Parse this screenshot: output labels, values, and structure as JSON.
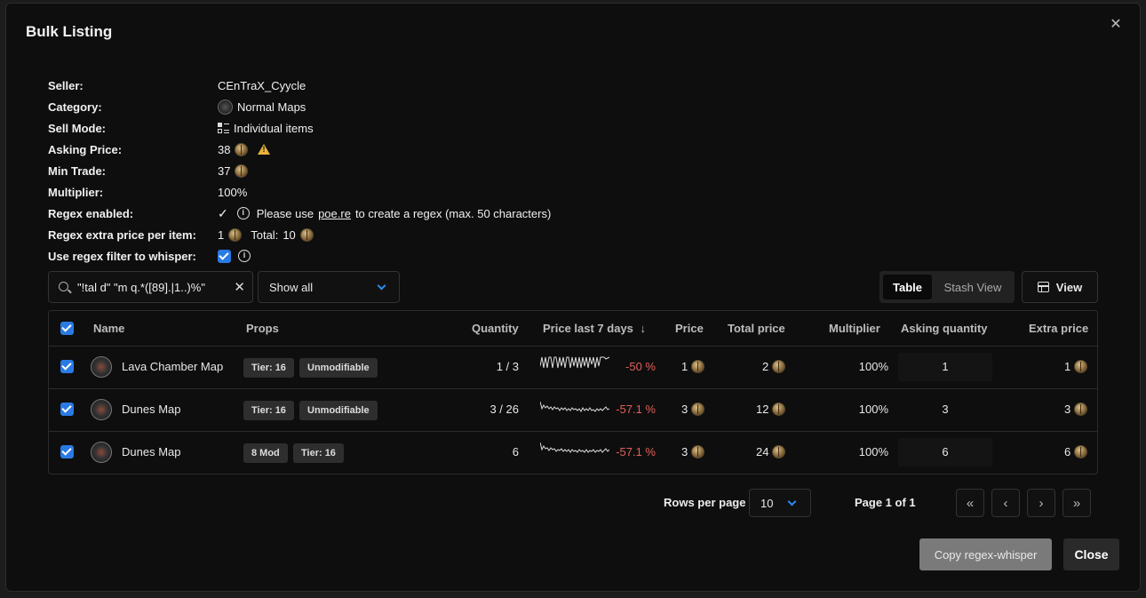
{
  "dialog": {
    "title": "Bulk Listing",
    "close_icon": "close-icon"
  },
  "info": {
    "seller_label": "Seller:",
    "seller_value": "CEnTraX_Cyycle",
    "category_label": "Category:",
    "category_value": "Normal Maps",
    "sell_mode_label": "Sell Mode:",
    "sell_mode_value": "Individual items",
    "asking_price_label": "Asking Price:",
    "asking_price_value": "38",
    "min_trade_label": "Min Trade:",
    "min_trade_value": "37",
    "multiplier_label": "Multiplier:",
    "multiplier_value": "100%",
    "regex_enabled_label": "Regex enabled:",
    "regex_hint_prefix": "Please use",
    "regex_hint_link": "poe.re",
    "regex_hint_suffix": "to create a regex (max. 50 characters)",
    "regex_extra_label": "Regex extra price per item:",
    "regex_extra_value": "1",
    "regex_total_label": "Total:",
    "regex_total_value": "10",
    "use_regex_label": "Use regex filter to whisper:"
  },
  "filters": {
    "search_value": "\"!tal d\" \"m q.*([89].|1..)%\"",
    "show_select": "Show all",
    "view_toggle": [
      "Table",
      "Stash View"
    ],
    "view_button": "View"
  },
  "table": {
    "headers": [
      "Name",
      "Props",
      "Quantity",
      "Price last 7 days",
      "Price",
      "Total price",
      "Multiplier",
      "Asking quantity",
      "Extra price"
    ],
    "rows": [
      {
        "name": "Lava Chamber Map",
        "props": [
          "Tier: 16",
          "Unmodifiable"
        ],
        "quantity": "1 / 3",
        "change": "-50 %",
        "price": "1",
        "total": "2",
        "multiplier": "100%",
        "asking": "1",
        "extra": "1"
      },
      {
        "name": "Dunes Map",
        "props": [
          "Tier: 16",
          "Unmodifiable"
        ],
        "quantity": "3 / 26",
        "change": "-57.1 %",
        "price": "3",
        "total": "12",
        "multiplier": "100%",
        "asking": "3",
        "extra": "3"
      },
      {
        "name": "Dunes Map",
        "props": [
          "8 Mod",
          "Tier: 16"
        ],
        "quantity": "6",
        "change": "-57.1 %",
        "price": "3",
        "total": "24",
        "multiplier": "100%",
        "asking": "6",
        "extra": "6"
      }
    ]
  },
  "pagination": {
    "rows_per_page_label": "Rows per page",
    "rows_per_page_value": "10",
    "page_info": "Page 1 of 1",
    "buttons": [
      "«",
      "‹",
      "›",
      "»"
    ]
  },
  "footer": {
    "copy_button": "Copy regex-whisper",
    "close_button": "Close"
  },
  "colors": {
    "accent": "#2a7ae4",
    "negative": "#e0605a",
    "warning": "#e8b23a"
  }
}
